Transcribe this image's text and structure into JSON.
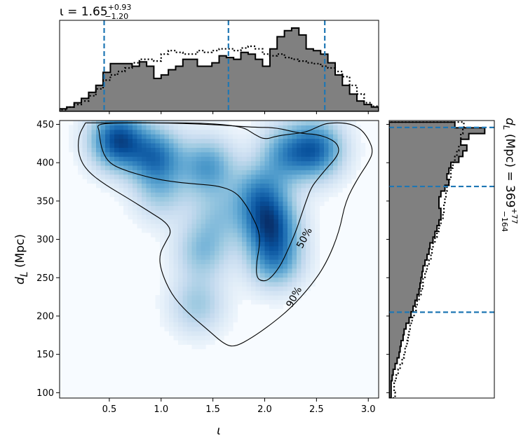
{
  "chart_data": [
    {
      "type": "heatmap",
      "panel": "joint-posterior",
      "xlabel": "ι",
      "ylabel": "d_L (Mpc)",
      "xlim": [
        0.02,
        3.1
      ],
      "ylim": [
        93,
        455
      ],
      "x_ticks": [
        "0.5",
        "1.0",
        "1.5",
        "2.0",
        "2.5",
        "3.0"
      ],
      "y_ticks": [
        "100",
        "150",
        "200",
        "250",
        "300",
        "350",
        "400",
        "450"
      ],
      "colormap": "Blues",
      "density_peaks": [
        {
          "x": 0.58,
          "y": 430,
          "weight": 1.0
        },
        {
          "x": 0.95,
          "y": 408,
          "weight": 0.75
        },
        {
          "x": 1.45,
          "y": 395,
          "weight": 0.6
        },
        {
          "x": 1.95,
          "y": 360,
          "weight": 0.6
        },
        {
          "x": 2.05,
          "y": 320,
          "weight": 0.85
        },
        {
          "x": 2.1,
          "y": 275,
          "weight": 0.65
        },
        {
          "x": 2.5,
          "y": 418,
          "weight": 0.8
        },
        {
          "x": 2.2,
          "y": 412,
          "weight": 0.55
        },
        {
          "x": 1.4,
          "y": 285,
          "weight": 0.4
        },
        {
          "x": 1.35,
          "y": 215,
          "weight": 0.35
        },
        {
          "x": 1.55,
          "y": 330,
          "weight": 0.3
        },
        {
          "x": 1.0,
          "y": 360,
          "weight": 0.3
        }
      ],
      "contours": [
        {
          "label": "50%",
          "label_position": {
            "x": 2.38,
            "y": 302
          },
          "points": [
            [
              0.4,
              442
            ],
            [
              0.38,
              450
            ],
            [
              0.55,
              452
            ],
            [
              1.0,
              452
            ],
            [
              1.5,
              450
            ],
            [
              1.9,
              446
            ],
            [
              2.1,
              446
            ],
            [
              2.35,
              438
            ],
            [
              2.5,
              437
            ],
            [
              2.62,
              432
            ],
            [
              2.7,
              425
            ],
            [
              2.72,
              415
            ],
            [
              2.68,
              405
            ],
            [
              2.6,
              393
            ],
            [
              2.52,
              380
            ],
            [
              2.45,
              368
            ],
            [
              2.4,
              350
            ],
            [
              2.35,
              330
            ],
            [
              2.3,
              310
            ],
            [
              2.22,
              285
            ],
            [
              2.15,
              265
            ],
            [
              2.05,
              248
            ],
            [
              1.98,
              245
            ],
            [
              1.92,
              250
            ],
            [
              1.92,
              270
            ],
            [
              1.95,
              290
            ],
            [
              1.95,
              310
            ],
            [
              1.88,
              330
            ],
            [
              1.82,
              345
            ],
            [
              1.72,
              362
            ],
            [
              1.55,
              370
            ],
            [
              1.35,
              372
            ],
            [
              1.12,
              375
            ],
            [
              0.9,
              380
            ],
            [
              0.6,
              392
            ],
            [
              0.48,
              402
            ],
            [
              0.42,
              420
            ],
            [
              0.4,
              442
            ]
          ]
        },
        {
          "label": "90%",
          "label_position": {
            "x": 2.28,
            "y": 225
          },
          "points": [
            [
              0.27,
              452
            ],
            [
              0.2,
              435
            ],
            [
              0.2,
              410
            ],
            [
              0.28,
              390
            ],
            [
              0.45,
              372
            ],
            [
              0.7,
              352
            ],
            [
              0.9,
              335
            ],
            [
              1.05,
              322
            ],
            [
              1.1,
              310
            ],
            [
              1.05,
              298
            ],
            [
              0.98,
              280
            ],
            [
              1.0,
              258
            ],
            [
              1.1,
              228
            ],
            [
              1.25,
              205
            ],
            [
              1.45,
              182
            ],
            [
              1.62,
              162
            ],
            [
              1.72,
              160
            ],
            [
              1.88,
              172
            ],
            [
              2.05,
              188
            ],
            [
              2.25,
              210
            ],
            [
              2.45,
              240
            ],
            [
              2.6,
              270
            ],
            [
              2.72,
              310
            ],
            [
              2.78,
              350
            ],
            [
              2.9,
              380
            ],
            [
              3.0,
              400
            ],
            [
              3.05,
              415
            ],
            [
              3.0,
              432
            ],
            [
              2.92,
              445
            ],
            [
              2.8,
              452
            ],
            [
              2.6,
              452
            ],
            [
              2.5,
              446
            ],
            [
              2.4,
              440
            ],
            [
              2.3,
              438
            ],
            [
              2.12,
              435
            ],
            [
              2.0,
              430
            ],
            [
              1.9,
              437
            ],
            [
              1.8,
              446
            ],
            [
              1.6,
              450
            ],
            [
              1.3,
              452
            ],
            [
              0.9,
              452
            ],
            [
              0.5,
              452
            ],
            [
              0.27,
              452
            ]
          ]
        }
      ]
    },
    {
      "type": "histogram",
      "panel": "top-marginal-iota",
      "title": "ι = 1.65",
      "title_sup": "+0.93",
      "title_sub": "−1.20",
      "xlim": [
        0.02,
        3.1
      ],
      "bin_edges": [
        0.02,
        0.09,
        0.16,
        0.23,
        0.3,
        0.37,
        0.44,
        0.51,
        0.58,
        0.65,
        0.72,
        0.79,
        0.86,
        0.93,
        1.0,
        1.07,
        1.14,
        1.21,
        1.28,
        1.35,
        1.42,
        1.49,
        1.56,
        1.63,
        1.7,
        1.77,
        1.84,
        1.91,
        1.98,
        2.05,
        2.12,
        2.19,
        2.26,
        2.33,
        2.4,
        2.47,
        2.54,
        2.61,
        2.68,
        2.75,
        2.82,
        2.89,
        2.96,
        3.03,
        3.1
      ],
      "series": [
        {
          "name": "",
          "style": "filled-step",
          "values": [
            0.03,
            0.05,
            0.1,
            0.15,
            0.22,
            0.3,
            0.45,
            0.55,
            0.55,
            0.55,
            0.52,
            0.57,
            0.52,
            0.38,
            0.42,
            0.48,
            0.52,
            0.6,
            0.6,
            0.52,
            0.52,
            0.56,
            0.64,
            0.62,
            0.6,
            0.68,
            0.66,
            0.6,
            0.52,
            0.72,
            0.86,
            0.93,
            0.96,
            0.88,
            0.72,
            0.7,
            0.66,
            0.56,
            0.42,
            0.3,
            0.2,
            0.12,
            0.08,
            0.05
          ]
        },
        {
          "name": "",
          "style": "dotted-step",
          "values": [
            0.02,
            0.05,
            0.08,
            0.12,
            0.18,
            0.26,
            0.36,
            0.42,
            0.46,
            0.5,
            0.56,
            0.6,
            0.6,
            0.58,
            0.66,
            0.7,
            0.68,
            0.66,
            0.66,
            0.7,
            0.68,
            0.7,
            0.72,
            0.72,
            0.7,
            0.73,
            0.75,
            0.72,
            0.66,
            0.64,
            0.66,
            0.62,
            0.6,
            0.58,
            0.56,
            0.55,
            0.52,
            0.5,
            0.46,
            0.4,
            0.3,
            0.2,
            0.1,
            0.06
          ]
        }
      ],
      "dashed_lines": [
        0.45,
        1.65,
        2.58
      ]
    },
    {
      "type": "histogram",
      "panel": "right-marginal-dL",
      "title": "d_L (Mpc) = 369",
      "title_sup": "+77",
      "title_sub": "−164",
      "ylim": [
        93,
        455
      ],
      "bin_edges": [
        93,
        100.5,
        108,
        115.5,
        123,
        130.5,
        138,
        145.5,
        153,
        160.5,
        168,
        175.5,
        183,
        190.5,
        198,
        205.5,
        213,
        220.5,
        228,
        235.5,
        243,
        250.5,
        258,
        265.5,
        273,
        280.5,
        288,
        295.5,
        303,
        310.5,
        318,
        325.5,
        333,
        340.5,
        348,
        355.5,
        363,
        370.5,
        378,
        385.5,
        393,
        400.5,
        408,
        415.5,
        423,
        430.5,
        438,
        445.5,
        453
      ],
      "series": [
        {
          "name": "",
          "style": "filled-step",
          "values": [
            0.02,
            0.02,
            0.02,
            0.03,
            0.04,
            0.06,
            0.08,
            0.1,
            0.11,
            0.12,
            0.14,
            0.15,
            0.17,
            0.2,
            0.22,
            0.24,
            0.26,
            0.28,
            0.3,
            0.31,
            0.32,
            0.33,
            0.34,
            0.36,
            0.38,
            0.4,
            0.41,
            0.44,
            0.46,
            0.48,
            0.5,
            0.52,
            0.52,
            0.5,
            0.5,
            0.52,
            0.56,
            0.6,
            0.58,
            0.6,
            0.62,
            0.7,
            0.74,
            0.78,
            0.72,
            0.8,
            0.96,
            0.66
          ]
        },
        {
          "name": "",
          "style": "dotted-step",
          "values": [
            0.06,
            0.05,
            0.05,
            0.07,
            0.09,
            0.11,
            0.13,
            0.15,
            0.16,
            0.18,
            0.19,
            0.2,
            0.21,
            0.23,
            0.25,
            0.27,
            0.28,
            0.3,
            0.32,
            0.34,
            0.34,
            0.36,
            0.38,
            0.4,
            0.42,
            0.43,
            0.44,
            0.46,
            0.48,
            0.5,
            0.52,
            0.54,
            0.55,
            0.55,
            0.56,
            0.57,
            0.58,
            0.6,
            0.62,
            0.62,
            0.64,
            0.66,
            0.68,
            0.7,
            0.72,
            0.72,
            0.74,
            0.75
          ]
        }
      ],
      "dashed_lines": [
        205,
        369,
        446
      ]
    }
  ]
}
